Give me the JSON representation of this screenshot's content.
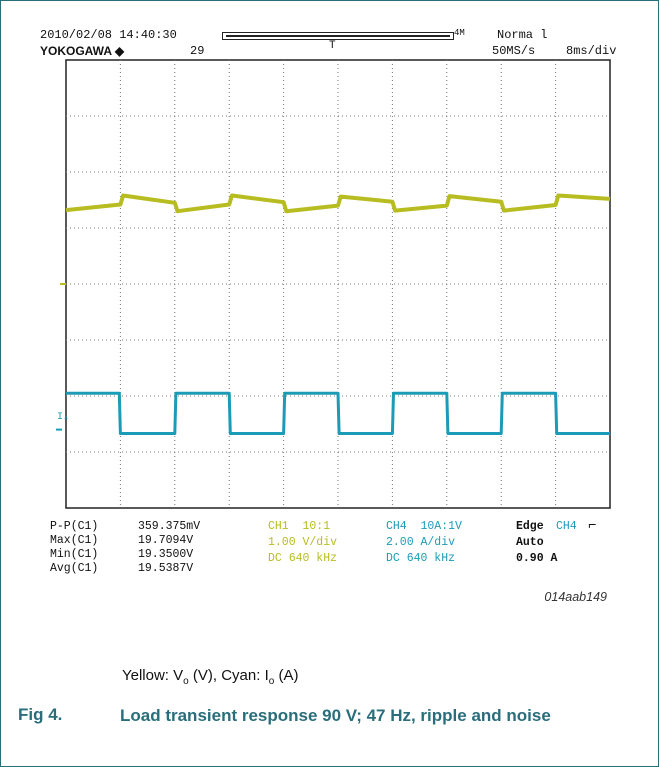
{
  "scope": {
    "datetime": "2010/02/08 14:40:30",
    "brand": "YOKOGAWA ◆",
    "acq_count": "29",
    "record_len": "4M",
    "trigger_mode": "Norma l",
    "sample_rate": "50MS/s",
    "timebase": "8ms/div",
    "marker_i": "I₄",
    "marker_t": "T"
  },
  "measurements": {
    "labels": [
      "P-P(C1)",
      "Max(C1)",
      "Min(C1)",
      "Avg(C1)"
    ],
    "values": [
      "359.375mV",
      "19.7094V",
      "19.3500V",
      "19.5387V"
    ]
  },
  "channels": {
    "ch1": [
      "CH1  10:1",
      "1.00 V/div",
      "DC 640 kHz"
    ],
    "ch4": [
      "CH4  10A:1V",
      "2.00 A/div",
      "DC 640 kHz"
    ]
  },
  "trigger": {
    "edge_label": "Edge",
    "edge_ch": "CH4",
    "edge_symbol": "⌐",
    "auto": "Auto",
    "level": "0.90 A"
  },
  "figure_code": "014aab149",
  "caption": {
    "yellow": "Yellow: V",
    "yellow_sub": "o",
    "yellow_unit": " (V), Cyan: I",
    "cyan_sub": "o",
    "cyan_unit": " (A)"
  },
  "figure": {
    "number": "Fig 4.",
    "title": "Load transient response 90 V; 47 Hz, ripple and noise"
  },
  "colors": {
    "yellow": "#b7bd20",
    "cyan": "#1c9bb7",
    "accent": "#2a6e7c"
  },
  "chart_data": {
    "type": "line",
    "x_unit": "div",
    "xlim": [
      0,
      10
    ],
    "ylim": [
      0,
      8
    ],
    "grid": true,
    "series": [
      {
        "name": "Yellow: Vo (V)",
        "color": "#b7bd20",
        "x": [
          0,
          1.0,
          1.05,
          2.0,
          2.05,
          3.0,
          3.05,
          4.0,
          4.05,
          5.0,
          5.05,
          6.0,
          6.05,
          7.0,
          7.05,
          8.0,
          8.05,
          9.0,
          9.05,
          10.0
        ],
        "y": [
          5.32,
          5.42,
          5.58,
          5.45,
          5.3,
          5.42,
          5.58,
          5.46,
          5.3,
          5.4,
          5.56,
          5.47,
          5.31,
          5.4,
          5.57,
          5.47,
          5.31,
          5.41,
          5.58,
          5.52
        ]
      },
      {
        "name": "Cyan: Io (A)",
        "color": "#1c9bb7",
        "x": [
          0,
          0.98,
          1.0,
          2.0,
          2.02,
          3.0,
          3.02,
          4.0,
          4.02,
          5.0,
          5.02,
          6.0,
          6.02,
          7.0,
          7.02,
          8.0,
          8.02,
          9.0,
          9.02,
          10.0
        ],
        "y": [
          2.05,
          2.05,
          1.33,
          1.33,
          2.05,
          2.05,
          1.33,
          1.33,
          2.05,
          2.05,
          1.33,
          1.33,
          2.05,
          2.05,
          1.33,
          1.33,
          2.05,
          2.05,
          1.33,
          1.33
        ]
      }
    ]
  }
}
